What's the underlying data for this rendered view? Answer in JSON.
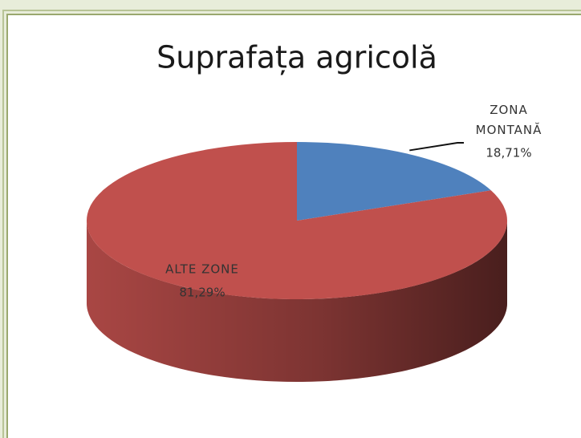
{
  "chart_data": {
    "type": "pie",
    "title": "Suprafața agricolă",
    "categories": [
      "ZONA MONTANĂ",
      "ALTE ZONE"
    ],
    "values": [
      18.71,
      81.29
    ],
    "value_labels": [
      "18,71%",
      "81,29%"
    ],
    "colors": [
      "#4f81bd",
      "#c0504d"
    ]
  }
}
